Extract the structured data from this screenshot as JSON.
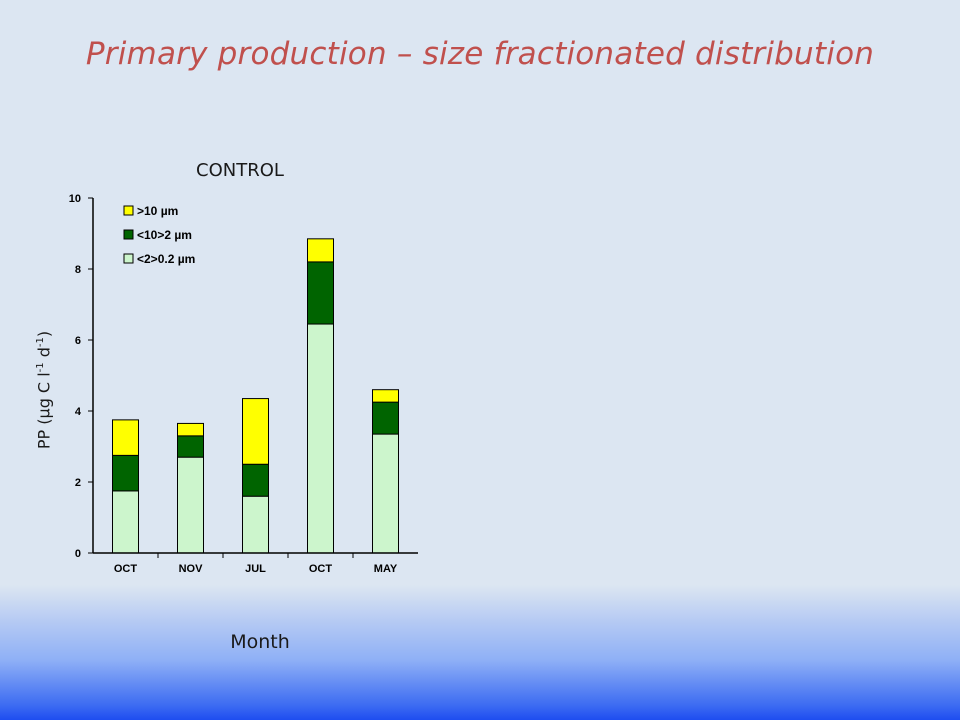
{
  "slide": {
    "title": "Primary production – size fractionated distribution"
  },
  "chart_data": {
    "type": "bar",
    "stacked": true,
    "title": "CONTROL",
    "xlabel": "Month",
    "ylabel_parts": [
      "PP (µg C l",
      "-1",
      " d",
      "-1",
      ")"
    ],
    "categories": [
      "OCT",
      "NOV",
      "JUL",
      "OCT",
      "MAY"
    ],
    "series": [
      {
        "name": "<2>0.2 µm",
        "values": [
          1.75,
          2.7,
          1.6,
          6.45,
          3.35
        ],
        "color": "#ccf5cc"
      },
      {
        "name": "<10>2  µm",
        "values": [
          1.0,
          0.6,
          0.9,
          1.75,
          0.9
        ],
        "color": "#006400"
      },
      {
        "name": ">10 µm",
        "values": [
          1.0,
          0.35,
          1.85,
          0.65,
          0.35
        ],
        "color": "#ffff00"
      }
    ],
    "legend_order": [
      ">10 µm",
      "<10>2  µm",
      "<2>0.2 µm"
    ],
    "ylim": [
      0,
      10
    ],
    "yticks": [
      "0",
      "2",
      "4",
      "6",
      "8",
      "10"
    ],
    "legend_position": "top-left",
    "grid": false
  }
}
